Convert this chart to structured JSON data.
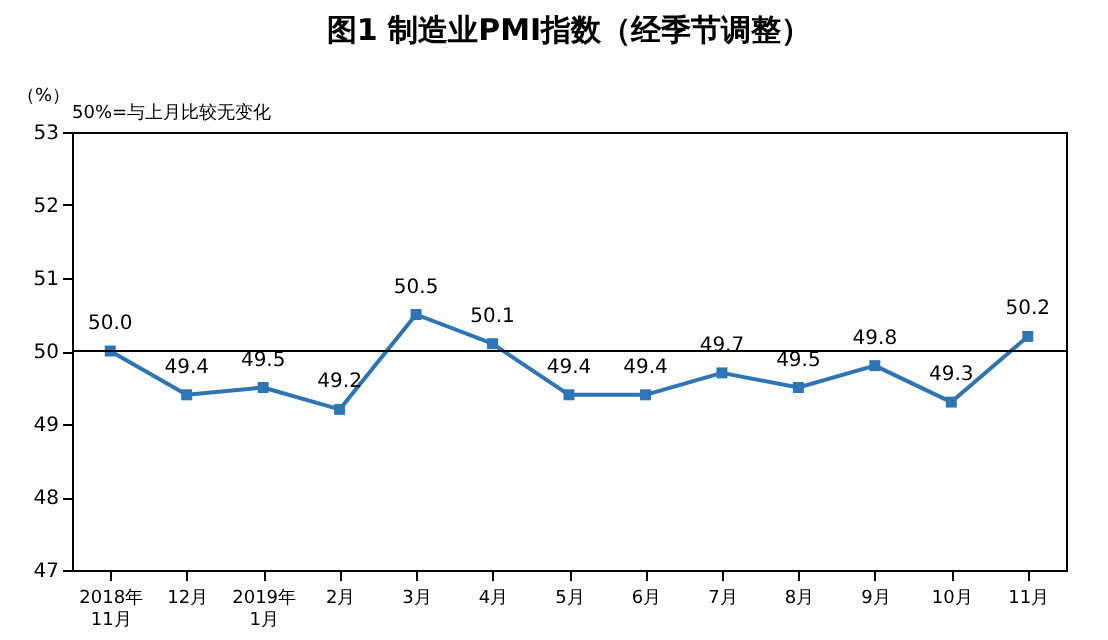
{
  "chart_data": {
    "type": "line",
    "title": "图1  制造业PMI指数（经季节调整）",
    "ylabel": "（%）",
    "annotations": [
      "50%=与上月比较无变化"
    ],
    "categories": [
      "2018年\n11月",
      "12月",
      "2019年\n1月",
      "2月",
      "3月",
      "4月",
      "5月",
      "6月",
      "7月",
      "8月",
      "9月",
      "10月",
      "11月"
    ],
    "series": [
      {
        "color": "#2e75b6",
        "values": [
          50.0,
          49.4,
          49.5,
          49.2,
          50.5,
          50.1,
          49.4,
          49.4,
          49.7,
          49.5,
          49.8,
          49.3,
          50.2
        ],
        "value_labels": [
          "50.0",
          "49.4",
          "49.5",
          "49.2",
          "50.5",
          "50.1",
          "49.4",
          "49.4",
          "49.7",
          "49.5",
          "49.8",
          "49.3",
          "50.2"
        ]
      }
    ],
    "ylim": [
      47,
      53
    ],
    "yticks": [
      47,
      48,
      49,
      50,
      51,
      52,
      53
    ],
    "ref_lines": [
      {
        "axis": "y",
        "value": 50,
        "color": "#000000"
      }
    ],
    "marker": "square",
    "line_style": "solid",
    "grid": false
  }
}
